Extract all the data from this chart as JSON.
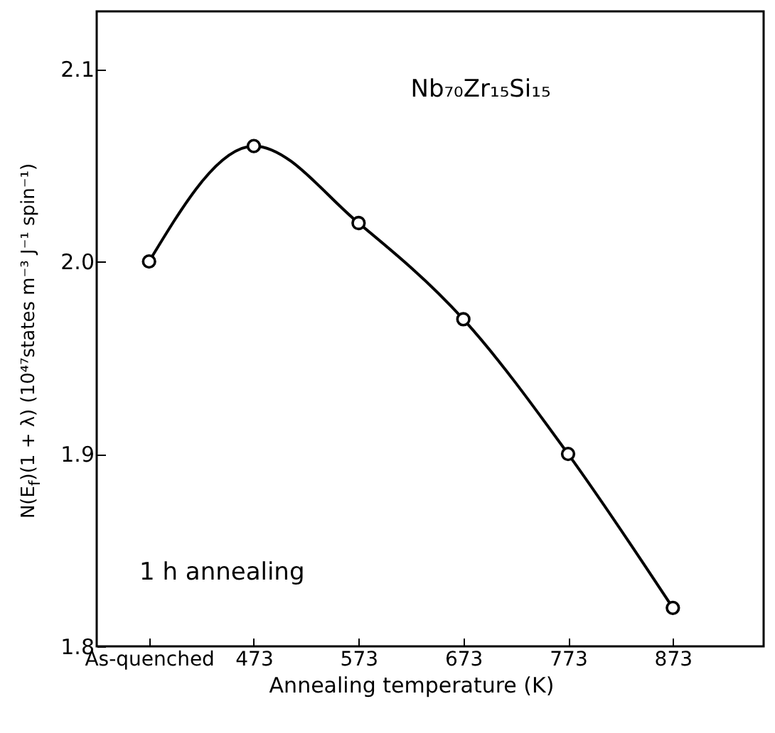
{
  "chart_data": {
    "type": "line",
    "title": "Nb₇₀Zr₁₅Si₁₅",
    "xlabel": "Annealing temperature (K)",
    "ylabel": "N(E$_{f}$)(1 + λ) (10⁴⁷states m⁻³ J⁻¹ spin⁻¹)",
    "categories": [
      "As-quenched",
      "473",
      "573",
      "673",
      "773",
      "873"
    ],
    "values": [
      2.0,
      2.06,
      2.02,
      1.97,
      1.9,
      1.82
    ],
    "color": "#000000",
    "marker": "circle",
    "ylim": [
      1.8,
      2.13
    ],
    "yticks": [
      {
        "value": 1.8,
        "label": "1.8"
      },
      {
        "value": 1.9,
        "label": "1.9"
      },
      {
        "value": 2.0,
        "label": "2.0"
      },
      {
        "value": 2.1,
        "label": "2.1"
      }
    ],
    "annotations": [
      "1 h annealing"
    ]
  }
}
